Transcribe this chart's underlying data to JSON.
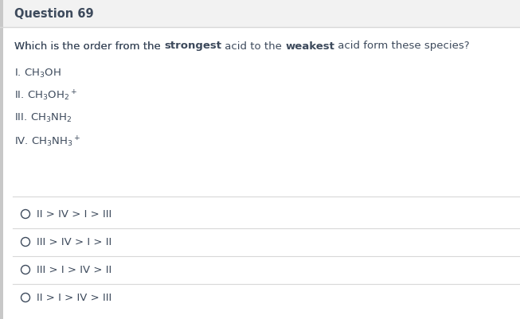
{
  "title": "Question 69",
  "question_parts": [
    {
      "text": "Which is the order from the ",
      "bold": false
    },
    {
      "text": "strongest",
      "bold": true
    },
    {
      "text": " acid to the ",
      "bold": false
    },
    {
      "text": "weakest",
      "bold": true
    },
    {
      "text": " acid form these species?",
      "bold": false
    }
  ],
  "species_labels": [
    "I.",
    "II.",
    "III.",
    "IV."
  ],
  "species_formulas": [
    "CH$_3$OH",
    "CH$_3$OH$_2$$^+$",
    "CH$_3$NH$_2$",
    "CH$_3$NH$_3$$^+$"
  ],
  "options": [
    "II > IV > I > III",
    "III > IV > I > II",
    "III > I > IV > II",
    "II > I > IV > III"
  ],
  "bg_color": "#ffffff",
  "header_bg": "#f2f2f2",
  "text_color": "#3d4a5c",
  "divider_color": "#d8d8d8",
  "left_border_color": "#c8c8c8",
  "font_size_title": 10.5,
  "font_size_body": 9.5,
  "font_size_options": 9.5
}
